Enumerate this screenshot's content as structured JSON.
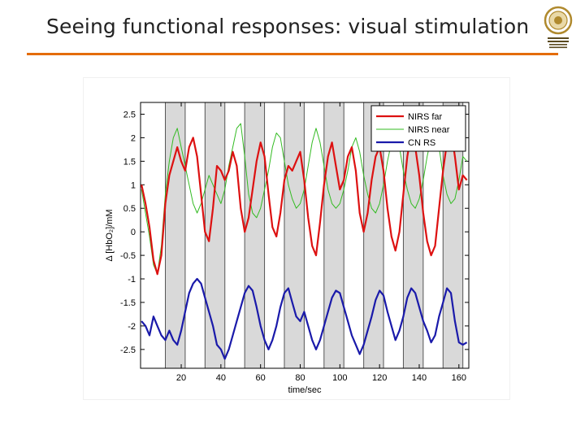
{
  "slide": {
    "title": "Seeing functional responses: visual stimulation"
  },
  "logo": {
    "icon": "university-seal-icon",
    "colors": {
      "ring": "#b08a2e",
      "inner": "#e9d9a8",
      "text": "#5a4a20"
    }
  },
  "theme": {
    "accent": "#e46c0a",
    "stim_band": "#d9d9d9",
    "stim_edge": "#555555"
  },
  "chart_data": {
    "type": "line",
    "xlabel": "time/sec",
    "ylabel": "Δ [HbO₂]/mM",
    "xlim": [
      -0.5,
      165
    ],
    "ylim": [
      -2.9,
      2.75
    ],
    "x_ticks": [
      20,
      40,
      60,
      80,
      100,
      120,
      140,
      160
    ],
    "y_ticks": [
      2.5,
      2,
      1.5,
      1,
      0.5,
      0,
      -0.5,
      -1,
      -1.5,
      -2,
      -2.5
    ],
    "grid": false,
    "legend_position": "top-right",
    "stimulation_blocks": [
      [
        12,
        22
      ],
      [
        32,
        42
      ],
      [
        52,
        62
      ],
      [
        72,
        82
      ],
      [
        92,
        102
      ],
      [
        112,
        122
      ],
      [
        132,
        142
      ],
      [
        152,
        162
      ]
    ],
    "series": [
      {
        "name": "NIRS far",
        "color": "#dd1111",
        "width": 2.2,
        "x": [
          0,
          2,
          4,
          6,
          8,
          10,
          12,
          14,
          16,
          18,
          20,
          22,
          24,
          26,
          28,
          30,
          32,
          34,
          36,
          38,
          40,
          42,
          44,
          46,
          48,
          50,
          52,
          54,
          56,
          58,
          60,
          62,
          64,
          66,
          68,
          70,
          72,
          74,
          76,
          78,
          80,
          82,
          84,
          86,
          88,
          90,
          92,
          94,
          96,
          98,
          100,
          102,
          104,
          106,
          108,
          110,
          112,
          114,
          116,
          118,
          120,
          122,
          124,
          126,
          128,
          130,
          132,
          134,
          136,
          138,
          140,
          142,
          144,
          146,
          148,
          150,
          152,
          154,
          156,
          158,
          160,
          162,
          164
        ],
        "values": [
          1.0,
          0.6,
          0.1,
          -0.6,
          -0.9,
          -0.5,
          0.6,
          1.2,
          1.5,
          1.8,
          1.5,
          1.3,
          1.8,
          2.0,
          1.6,
          0.8,
          0.0,
          -0.2,
          0.5,
          1.4,
          1.3,
          1.1,
          1.3,
          1.7,
          1.4,
          0.5,
          0.0,
          0.3,
          0.9,
          1.5,
          1.9,
          1.6,
          0.8,
          0.1,
          -0.1,
          0.4,
          1.1,
          1.4,
          1.3,
          1.5,
          1.7,
          1.1,
          0.3,
          -0.3,
          -0.5,
          0.2,
          1.0,
          1.6,
          1.9,
          1.4,
          0.9,
          1.1,
          1.6,
          1.8,
          1.3,
          0.4,
          0.0,
          0.4,
          1.1,
          1.6,
          1.8,
          1.3,
          0.5,
          -0.1,
          -0.4,
          0.0,
          0.8,
          1.6,
          2.1,
          1.8,
          1.2,
          0.4,
          -0.2,
          -0.5,
          -0.3,
          0.5,
          1.3,
          1.9,
          2.2,
          1.6,
          0.9,
          1.2,
          1.1
        ]
      },
      {
        "name": "NIRS near",
        "color": "#33bb22",
        "width": 1.0,
        "x": [
          0,
          2,
          4,
          6,
          8,
          10,
          12,
          14,
          16,
          18,
          20,
          22,
          24,
          26,
          28,
          30,
          32,
          34,
          36,
          38,
          40,
          42,
          44,
          46,
          48,
          50,
          52,
          54,
          56,
          58,
          60,
          62,
          64,
          66,
          68,
          70,
          72,
          74,
          76,
          78,
          80,
          82,
          84,
          86,
          88,
          90,
          92,
          94,
          96,
          98,
          100,
          102,
          104,
          106,
          108,
          110,
          112,
          114,
          116,
          118,
          120,
          122,
          124,
          126,
          128,
          130,
          132,
          134,
          136,
          138,
          140,
          142,
          144,
          146,
          148,
          150,
          152,
          154,
          156,
          158,
          160,
          162,
          164
        ],
        "values": [
          0.9,
          0.4,
          -0.1,
          -0.7,
          -0.9,
          -0.3,
          0.8,
          1.5,
          2.0,
          2.2,
          1.8,
          1.4,
          1.0,
          0.6,
          0.4,
          0.6,
          0.9,
          1.2,
          1.0,
          0.8,
          0.6,
          0.9,
          1.4,
          1.8,
          2.2,
          2.3,
          1.6,
          0.8,
          0.4,
          0.3,
          0.5,
          0.9,
          1.3,
          1.8,
          2.1,
          2.0,
          1.5,
          1.0,
          0.7,
          0.5,
          0.6,
          0.9,
          1.4,
          1.9,
          2.2,
          1.9,
          1.4,
          0.9,
          0.6,
          0.5,
          0.6,
          0.9,
          1.3,
          1.8,
          2.0,
          1.7,
          1.2,
          0.8,
          0.5,
          0.4,
          0.6,
          1.0,
          1.5,
          1.9,
          2.1,
          1.8,
          1.3,
          0.9,
          0.6,
          0.5,
          0.7,
          1.1,
          1.6,
          2.0,
          2.2,
          1.8,
          1.2,
          0.8,
          0.6,
          0.7,
          1.1,
          1.6,
          1.5
        ]
      },
      {
        "name": "CN RS",
        "color": "#1a1aaa",
        "width": 2.2,
        "x": [
          0,
          2,
          4,
          6,
          8,
          10,
          12,
          14,
          16,
          18,
          20,
          22,
          24,
          26,
          28,
          30,
          32,
          34,
          36,
          38,
          40,
          42,
          44,
          46,
          48,
          50,
          52,
          54,
          56,
          58,
          60,
          62,
          64,
          66,
          68,
          70,
          72,
          74,
          76,
          78,
          80,
          82,
          84,
          86,
          88,
          90,
          92,
          94,
          96,
          98,
          100,
          102,
          104,
          106,
          108,
          110,
          112,
          114,
          116,
          118,
          120,
          122,
          124,
          126,
          128,
          130,
          132,
          134,
          136,
          138,
          140,
          142,
          144,
          146,
          148,
          150,
          152,
          154,
          156,
          158,
          160,
          162,
          164
        ],
        "values": [
          -1.9,
          -2.0,
          -2.2,
          -1.8,
          -2.0,
          -2.2,
          -2.3,
          -2.1,
          -2.3,
          -2.4,
          -2.1,
          -1.7,
          -1.3,
          -1.1,
          -1.0,
          -1.1,
          -1.4,
          -1.7,
          -2.0,
          -2.4,
          -2.5,
          -2.7,
          -2.5,
          -2.2,
          -1.9,
          -1.6,
          -1.3,
          -1.15,
          -1.25,
          -1.6,
          -2.0,
          -2.3,
          -2.5,
          -2.3,
          -2.0,
          -1.6,
          -1.3,
          -1.2,
          -1.5,
          -1.8,
          -1.9,
          -1.7,
          -2.0,
          -2.3,
          -2.5,
          -2.3,
          -2.0,
          -1.7,
          -1.4,
          -1.25,
          -1.3,
          -1.6,
          -1.9,
          -2.2,
          -2.4,
          -2.6,
          -2.4,
          -2.1,
          -1.8,
          -1.45,
          -1.25,
          -1.35,
          -1.7,
          -2.0,
          -2.3,
          -2.1,
          -1.8,
          -1.4,
          -1.2,
          -1.3,
          -1.6,
          -1.9,
          -2.1,
          -2.35,
          -2.2,
          -1.8,
          -1.5,
          -1.2,
          -1.3,
          -1.9,
          -2.35,
          -2.4,
          -2.35
        ]
      }
    ]
  }
}
